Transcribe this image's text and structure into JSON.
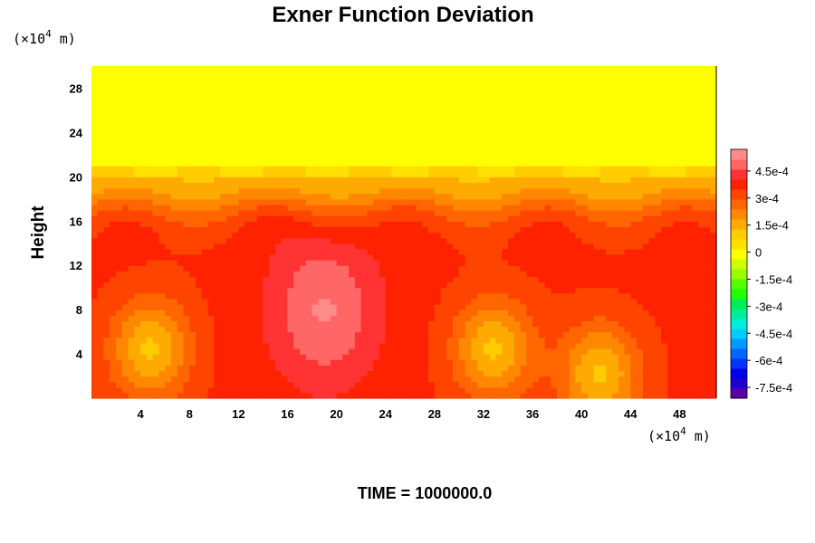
{
  "chart_data": {
    "type": "heatmap",
    "title": "Exner Function Deviation",
    "ylabel": "Height",
    "y_unit_prefix": "(×10",
    "y_unit_exp": "4",
    "y_unit_suffix": " m)",
    "x_unit_prefix": "(×10",
    "x_unit_exp": "4",
    "x_unit_suffix": " m)",
    "x_ticks": [
      "4",
      "8",
      "12",
      "16",
      "20",
      "24",
      "28",
      "32",
      "36",
      "40",
      "44",
      "48"
    ],
    "x_tick_values": [
      4,
      8,
      12,
      16,
      20,
      24,
      28,
      32,
      36,
      40,
      44,
      48
    ],
    "y_ticks": [
      "4",
      "8",
      "12",
      "16",
      "20",
      "24",
      "28"
    ],
    "y_tick_values": [
      4,
      8,
      12,
      16,
      20,
      24,
      28
    ],
    "xlim": [
      0,
      51
    ],
    "ylim": [
      0,
      30
    ],
    "colorbar": {
      "ticks": [
        "4.5e-4",
        "3e-4",
        "1.5e-4",
        "0",
        "-1.5e-4",
        "-3e-4",
        "-4.5e-4",
        "-6e-4",
        "-7.5e-4"
      ],
      "tick_values": [
        0.00045,
        0.0003,
        0.00015,
        0,
        -0.00015,
        -0.0003,
        -0.00045,
        -0.0006,
        -0.00075
      ],
      "range": [
        -0.00081,
        0.00057
      ],
      "levels": 23
    },
    "field_description": {
      "upper_layer_value": 0.0,
      "layer_top_height": 20,
      "base_value": 0.00036,
      "maxima": [
        {
          "x": 4.8,
          "y": 4.5,
          "value": 0.00012
        },
        {
          "x": 32.8,
          "y": 4.5,
          "value": 0.00015
        },
        {
          "x": 41.5,
          "y": 2.2,
          "value": 0.00018
        }
      ],
      "warm_core": {
        "x": 19,
        "y": 8,
        "value": 0.00052
      }
    },
    "footer": "TIME = 1000000.0"
  },
  "colors": {
    "upper_layer": "#55ff00",
    "palette": [
      "#5c00a8",
      "#2200cc",
      "#0000e6",
      "#0033ff",
      "#0066ff",
      "#0099ff",
      "#00ccff",
      "#00eedd",
      "#00ee99",
      "#00ee55",
      "#22ff00",
      "#55ff00",
      "#99ff00",
      "#ccff00",
      "#ffff00",
      "#ffe000",
      "#ffcc00",
      "#ffaa00",
      "#ff8800",
      "#ff6600",
      "#ff4400",
      "#ff2200",
      "#ff3333",
      "#ff6666",
      "#ff8a8a"
    ]
  }
}
